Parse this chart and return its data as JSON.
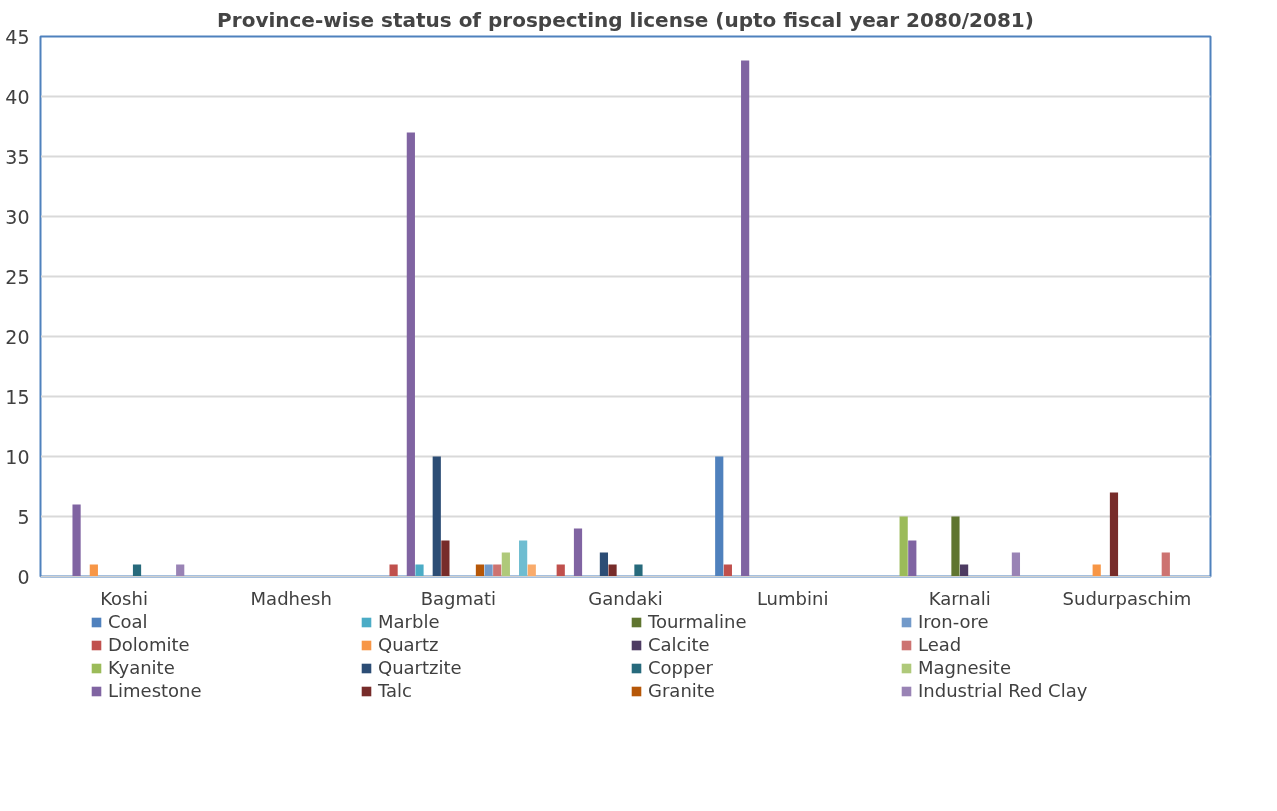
{
  "chart_data": {
    "type": "bar",
    "title": "Province-wise status of prospecting license (upto fiscal year 2080/2081)",
    "categories": [
      "Koshi",
      "Madhesh",
      "Bagmati",
      "Gandaki",
      "Lumbini",
      "Karnali",
      "Sudurpaschim"
    ],
    "ylim": [
      0,
      45
    ],
    "yticks": [
      0,
      5,
      10,
      15,
      20,
      25,
      30,
      35,
      40,
      45
    ],
    "grid": "y",
    "legend": "bottom",
    "series": [
      {
        "name": "Coal",
        "color": "#4f81bd",
        "values": [
          0,
          0,
          0,
          0,
          10,
          0,
          0
        ]
      },
      {
        "name": "Dolomite",
        "color": "#c0504d",
        "values": [
          0,
          0,
          1,
          1,
          1,
          0,
          0
        ]
      },
      {
        "name": "Kyanite",
        "color": "#9bbb59",
        "values": [
          0,
          0,
          0,
          0,
          0,
          5,
          0
        ]
      },
      {
        "name": "Limestone",
        "color": "#8064a2",
        "values": [
          6,
          0,
          37,
          4,
          43,
          3,
          0
        ]
      },
      {
        "name": "Marble",
        "color": "#4bacc6",
        "values": [
          0,
          0,
          1,
          0,
          0,
          0,
          0
        ]
      },
      {
        "name": "Quartz",
        "color": "#f79646",
        "values": [
          1,
          0,
          0,
          0,
          0,
          0,
          1
        ]
      },
      {
        "name": "Quartzite",
        "color": "#2c4d75",
        "values": [
          0,
          0,
          10,
          2,
          0,
          0,
          0
        ]
      },
      {
        "name": "Talc",
        "color": "#772c2a",
        "values": [
          0,
          0,
          3,
          1,
          0,
          0,
          7
        ]
      },
      {
        "name": "Tourmaline",
        "color": "#5f7530",
        "values": [
          0,
          0,
          0,
          0,
          0,
          5,
          0
        ]
      },
      {
        "name": "Calcite",
        "color": "#4d3b62",
        "values": [
          0,
          0,
          0,
          0,
          0,
          1,
          0
        ]
      },
      {
        "name": "Copper",
        "color": "#276a7c",
        "values": [
          1,
          0,
          0,
          1,
          0,
          0,
          0
        ]
      },
      {
        "name": "Granite",
        "color": "#b65708",
        "values": [
          0,
          0,
          1,
          0,
          0,
          0,
          0
        ]
      },
      {
        "name": "Iron-ore",
        "color": "#729aca",
        "values": [
          0,
          0,
          1,
          0,
          0,
          0,
          0
        ]
      },
      {
        "name": "Lead",
        "color": "#cd7371",
        "values": [
          0,
          0,
          1,
          0,
          0,
          0,
          2
        ]
      },
      {
        "name": "Magnesite",
        "color": "#afc97a",
        "values": [
          0,
          0,
          2,
          0,
          0,
          0,
          0
        ]
      },
      {
        "name": "Industrial Red Clay",
        "color": "#9983b5",
        "values": [
          1,
          0,
          0,
          0,
          0,
          2,
          0
        ]
      },
      {
        "color": "#6fbdd1",
        "values": [
          0,
          0,
          3,
          0,
          0,
          0,
          0
        ]
      },
      {
        "color": "#f9ab6b",
        "values": [
          0,
          0,
          1,
          0,
          0,
          0,
          0
        ]
      }
    ]
  }
}
